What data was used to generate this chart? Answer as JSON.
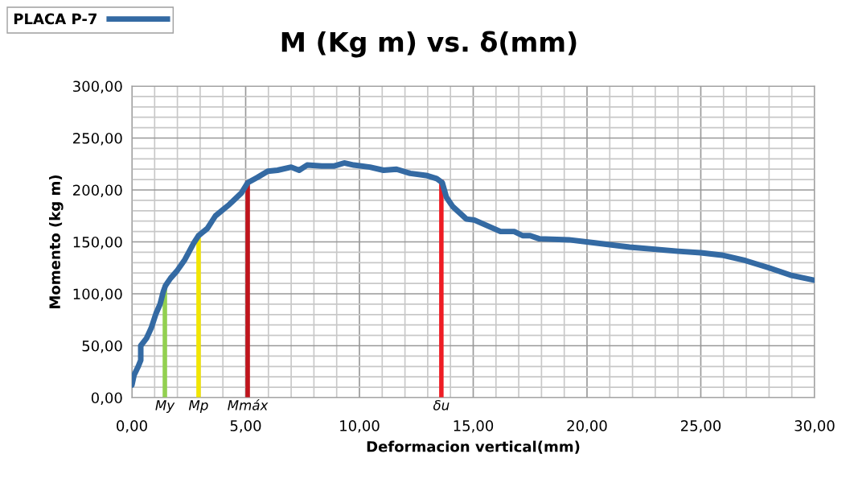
{
  "chart_data": {
    "type": "line",
    "title": "M (Kg m) vs. δ(mm)",
    "xlabel": "Deformacion vertical(mm)",
    "ylabel": "Momento (kg m)",
    "xlim": [
      0,
      30
    ],
    "ylim": [
      0,
      300
    ],
    "xticks": [
      {
        "value": 0,
        "label": "0,00"
      },
      {
        "value": 5,
        "label": "5,00"
      },
      {
        "value": 10,
        "label": "10,00"
      },
      {
        "value": 15,
        "label": "15,00"
      },
      {
        "value": 20,
        "label": "20,00"
      },
      {
        "value": 25,
        "label": "25,00"
      },
      {
        "value": 30,
        "label": "30,00"
      }
    ],
    "yticks": [
      {
        "value": 0,
        "label": "0,00"
      },
      {
        "value": 50,
        "label": "50,00"
      },
      {
        "value": 100,
        "label": "100,00"
      },
      {
        "value": 150,
        "label": "150,00"
      },
      {
        "value": 200,
        "label": "200,00"
      },
      {
        "value": 250,
        "label": "250,00"
      },
      {
        "value": 300,
        "label": "300,00"
      }
    ],
    "grid": true,
    "legend": "top left",
    "marker": "none",
    "line_style": "solid",
    "series": [
      {
        "name": "PLACA P-7",
        "color": "#346aa3",
        "x": [
          0,
          0.1,
          0.28,
          0.39,
          0.39,
          0.64,
          0.85,
          1.06,
          1.24,
          1.38,
          1.48,
          1.7,
          1.98,
          2.33,
          2.72,
          2.93,
          3.32,
          3.67,
          4.28,
          4.81,
          5.09,
          5.51,
          5.97,
          6.4,
          7.0,
          7.35,
          7.7,
          8.34,
          8.87,
          9.33,
          9.75,
          10.46,
          11.06,
          11.63,
          12.23,
          12.93,
          13.39,
          13.64,
          13.82,
          14.1,
          14.7,
          15.05,
          16.2,
          16.8,
          17.17,
          17.5,
          17.9,
          19.2,
          20.35,
          21.87,
          24.0,
          25.0,
          26.0,
          26.96,
          28.0,
          28.94,
          30.0
        ],
        "values": [
          12,
          22,
          30,
          36,
          50,
          57,
          67,
          81,
          90,
          102,
          108,
          115,
          122,
          133,
          149,
          156,
          163,
          175,
          186,
          197,
          207,
          212,
          218,
          219,
          222,
          219,
          224,
          223,
          223,
          226,
          224,
          222,
          219,
          220,
          216,
          214,
          211,
          207,
          193,
          184,
          172,
          171,
          160,
          160,
          156,
          156,
          153,
          152,
          149,
          145,
          141,
          139.5,
          137,
          132,
          125,
          118,
          113
        ]
      }
    ],
    "ref_lines": [
      {
        "axis": "x",
        "value": 1.45,
        "label": "My",
        "color": "#92d050"
      },
      {
        "axis": "x",
        "value": 2.93,
        "label": "Mp",
        "color": "#f2e600"
      },
      {
        "axis": "x",
        "value": 5.09,
        "label": "Mmáx",
        "color": "#c0141c"
      },
      {
        "axis": "x",
        "value": 13.6,
        "label": "δu",
        "color": "#ee1c24"
      }
    ]
  }
}
